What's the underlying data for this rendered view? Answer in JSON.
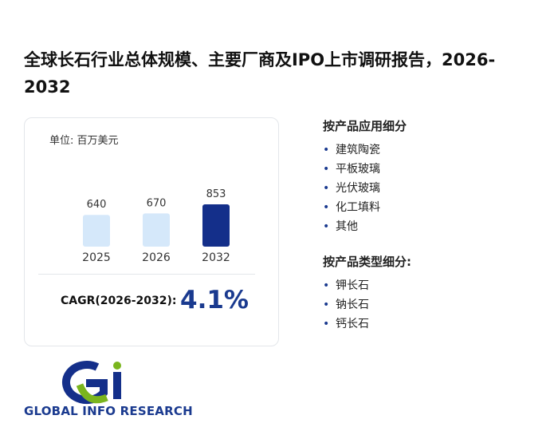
{
  "title": "全球长石行业总体规模、主要厂商及IPO上市调研报告，2026-2032",
  "chart_data": {
    "type": "bar",
    "unit": "单位: 百万美元",
    "categories": [
      "2025",
      "2026",
      "2032"
    ],
    "values": [
      640,
      670,
      853
    ],
    "colors": [
      "#d5e8fa",
      "#d5e8fa",
      "#142f8a"
    ]
  },
  "cagr": {
    "label": "CAGR(2026-2032):",
    "value": "4.1%"
  },
  "application": {
    "title": "按产品应用细分",
    "items": [
      "建筑陶瓷",
      "平板玻璃",
      "光伏玻璃",
      "化工填料",
      "其他"
    ]
  },
  "product_type": {
    "title": "按产品类型细分:",
    "items": [
      "钾长石",
      "钠长石",
      "钙长石"
    ]
  },
  "logo": "GLOBAL INFO RESEARCH"
}
